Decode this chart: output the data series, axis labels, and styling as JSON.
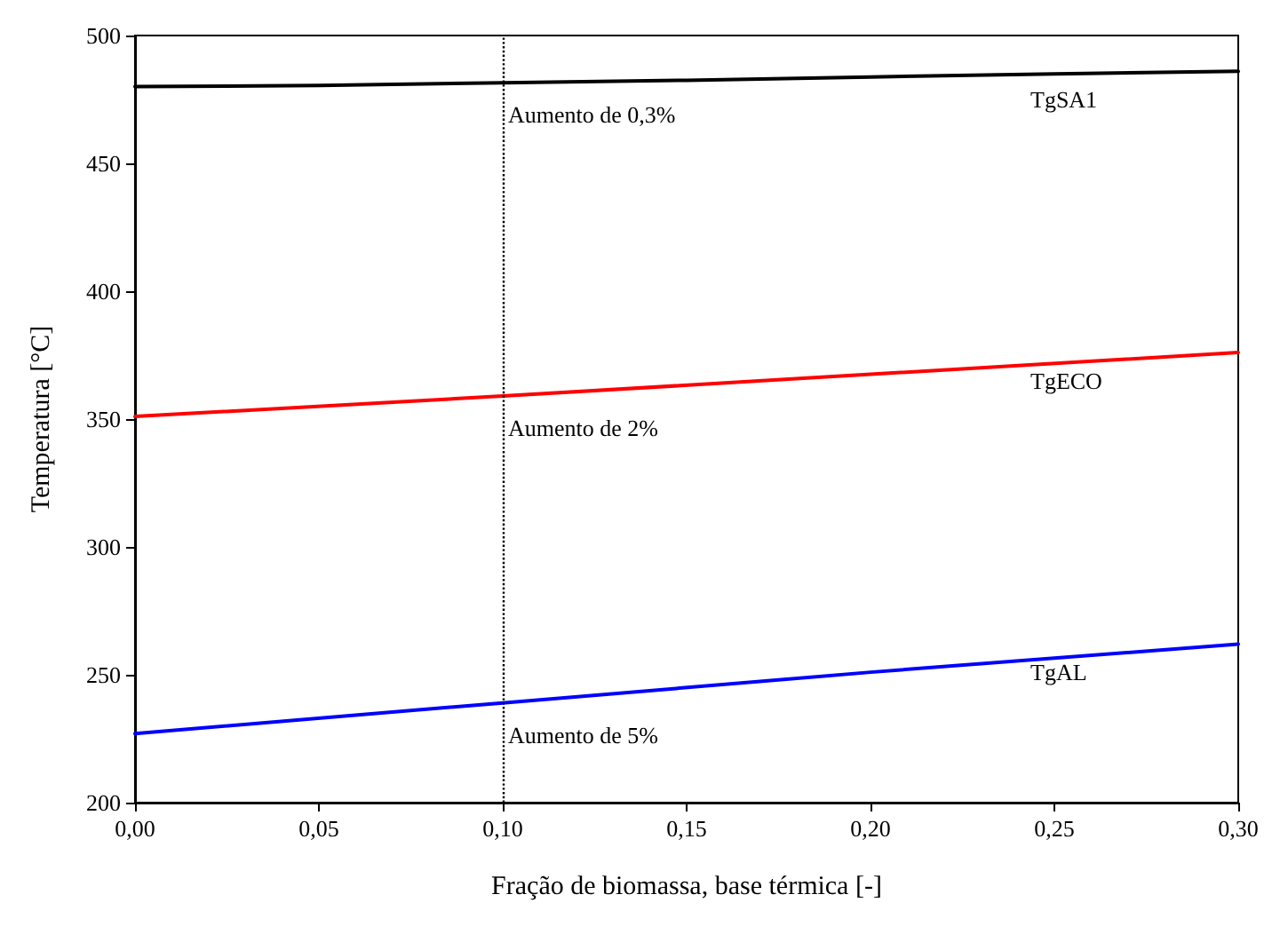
{
  "chart_data": {
    "type": "line",
    "xlabel": "Fração de biomassa, base térmica [-]",
    "ylabel": "Temperatura [°C]",
    "xlim": [
      0,
      0.3
    ],
    "xticks": [
      {
        "value": 0,
        "label": "0,00"
      },
      {
        "value": 0.05,
        "label": "0,05"
      },
      {
        "value": 0.1,
        "label": "0,10"
      },
      {
        "value": 0.15,
        "label": "0,15"
      },
      {
        "value": 0.2,
        "label": "0,20"
      },
      {
        "value": 0.25,
        "label": "0,25"
      },
      {
        "value": 0.3,
        "label": "0,30"
      }
    ],
    "ylim": [
      200,
      500
    ],
    "yticks": [
      200,
      250,
      300,
      350,
      400,
      450,
      500
    ],
    "grid": false,
    "legend": false,
    "marker": "none",
    "line_style": "solid",
    "series": [
      {
        "name": "TgSA1",
        "color": "#000000",
        "x": [
          0,
          0.05,
          0.1,
          0.15,
          0.2,
          0.25,
          0.3
        ],
        "values": [
          480,
          480.5,
          481.5,
          482.5,
          483.8,
          485,
          486
        ]
      },
      {
        "name": "TgECO",
        "color": "#ff0000",
        "x": [
          0,
          0.1,
          0.2,
          0.3
        ],
        "values": [
          351,
          359,
          367.5,
          376
        ]
      },
      {
        "name": "TgAL",
        "color": "#0000ff",
        "x": [
          0,
          0.1,
          0.2,
          0.3
        ],
        "values": [
          227,
          239,
          251,
          262
        ]
      }
    ],
    "ref_lines": [
      {
        "axis": "x",
        "value": 0.1,
        "color": "#000000",
        "line_style": "dotted"
      }
    ],
    "annotations": [
      "Aumento de 0,3%",
      "Aumento de 2%",
      "Aumento de 5%"
    ]
  }
}
